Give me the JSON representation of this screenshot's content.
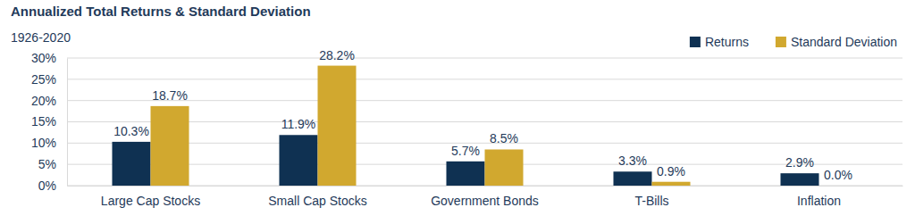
{
  "chart_data": {
    "type": "bar",
    "title": "Annualized Total Returns & Standard Deviation",
    "subtitle": "1926-2020",
    "categories": [
      "Large Cap Stocks",
      "Small Cap Stocks",
      "Government Bonds",
      "T-Bills",
      "Inflation"
    ],
    "series": [
      {
        "name": "Returns",
        "color": "#0f3152",
        "values": [
          10.3,
          11.9,
          5.7,
          3.3,
          2.9
        ],
        "value_labels": [
          "10.3%",
          "11.9%",
          "5.7%",
          "3.3%",
          "2.9%"
        ]
      },
      {
        "name": "Standard Deviation",
        "color": "#d1a82f",
        "values": [
          18.7,
          28.2,
          8.5,
          0.9,
          0.0
        ],
        "value_labels": [
          "18.7%",
          "28.2%",
          "8.5%",
          "0.9%",
          "0.0%"
        ]
      }
    ],
    "ylim": [
      0,
      30
    ],
    "yticks": [
      {
        "value": 0,
        "label": "0%"
      },
      {
        "value": 5,
        "label": "5%"
      },
      {
        "value": 10,
        "label": "10%"
      },
      {
        "value": 15,
        "label": "15%"
      },
      {
        "value": 20,
        "label": "20%"
      },
      {
        "value": 25,
        "label": "25%"
      },
      {
        "value": 30,
        "label": "30%"
      }
    ],
    "grid": true,
    "legend": "top-right",
    "data_labels": true
  }
}
